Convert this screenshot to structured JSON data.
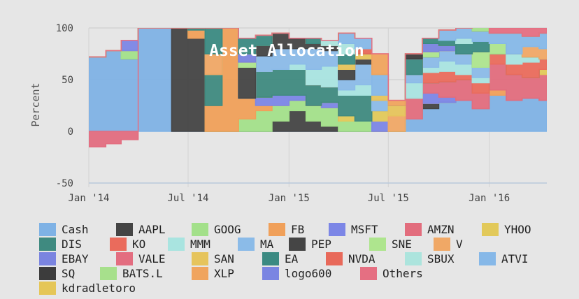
{
  "chart_data": {
    "type": "area",
    "title": "Asset Allocation",
    "ylabel": "Percent",
    "xlabel": "",
    "ylim": [
      -50,
      100
    ],
    "yticks": [
      -50,
      0,
      50,
      100
    ],
    "xlim": [
      "2014-01-01",
      "2016-04-15"
    ],
    "xticks": [
      {
        "label": "Jan '14",
        "date": "2014-01-01"
      },
      {
        "label": "Jul '14",
        "date": "2014-07-01"
      },
      {
        "label": "Jan '15",
        "date": "2015-01-01"
      },
      {
        "label": "Jul '15",
        "date": "2015-07-01"
      },
      {
        "label": "Jan '16",
        "date": "2016-01-01"
      }
    ],
    "grid": true,
    "legend_position": "bottom",
    "x": [
      "2014-01-01",
      "2014-02-01",
      "2014-03-01",
      "2014-04-01",
      "2014-05-01",
      "2014-06-01",
      "2014-07-01",
      "2014-08-01",
      "2014-09-01",
      "2014-10-01",
      "2014-11-01",
      "2014-12-01",
      "2015-01-01",
      "2015-02-01",
      "2015-03-01",
      "2015-04-01",
      "2015-05-01",
      "2015-06-01",
      "2015-07-01",
      "2015-08-01",
      "2015-09-01",
      "2015-10-01",
      "2015-11-01",
      "2015-12-01",
      "2016-01-01",
      "2016-02-01",
      "2016-03-01",
      "2016-04-01"
    ],
    "series": [
      {
        "name": "Cash",
        "color": "#7fb2e5",
        "values": [
          72,
          78,
          70,
          100,
          100,
          0,
          0,
          0,
          0,
          0,
          0,
          0,
          0,
          0,
          0,
          0,
          0,
          0,
          0,
          12,
          22,
          28,
          30,
          22,
          35,
          30,
          32,
          30
        ]
      },
      {
        "name": "AAPL",
        "color": "#444444",
        "values": [
          0,
          0,
          0,
          0,
          0,
          100,
          90,
          0,
          0,
          0,
          0,
          10,
          20,
          10,
          5,
          0,
          0,
          0,
          0,
          0,
          5,
          0,
          0,
          0,
          0,
          0,
          0,
          0
        ]
      },
      {
        "name": "GOOG",
        "color": "#a3e08a",
        "values": [
          0,
          0,
          8,
          0,
          0,
          0,
          0,
          0,
          0,
          12,
          20,
          15,
          10,
          15,
          18,
          10,
          10,
          0,
          0,
          0,
          0,
          0,
          0,
          0,
          0,
          0,
          0,
          0
        ]
      },
      {
        "name": "FB",
        "color": "#f0a05a",
        "values": [
          0,
          0,
          0,
          0,
          0,
          0,
          8,
          25,
          100,
          20,
          5,
          0,
          0,
          0,
          0,
          0,
          0,
          0,
          0,
          0,
          0,
          0,
          0,
          0,
          5,
          0,
          0,
          0
        ]
      },
      {
        "name": "MSFT",
        "color": "#7c86e6",
        "values": [
          0,
          0,
          10,
          0,
          0,
          0,
          0,
          0,
          0,
          0,
          8,
          10,
          5,
          0,
          5,
          0,
          0,
          10,
          0,
          0,
          10,
          5,
          0,
          0,
          0,
          0,
          0,
          0
        ]
      },
      {
        "name": "AMZN",
        "color": "#e26d7d",
        "values": [
          0,
          0,
          0,
          0,
          0,
          0,
          0,
          0,
          0,
          0,
          0,
          0,
          0,
          0,
          0,
          0,
          0,
          0,
          0,
          20,
          10,
          15,
          20,
          15,
          25,
          25,
          20,
          25
        ]
      },
      {
        "name": "YHOO",
        "color": "#e2c95a",
        "values": [
          0,
          0,
          0,
          0,
          0,
          0,
          0,
          0,
          0,
          0,
          0,
          0,
          0,
          0,
          0,
          5,
          0,
          10,
          0,
          0,
          0,
          0,
          0,
          0,
          0,
          0,
          0,
          5
        ]
      },
      {
        "name": "DIS",
        "color": "#3f8a80",
        "values": [
          0,
          0,
          0,
          0,
          0,
          0,
          2,
          30,
          0,
          0,
          25,
          25,
          25,
          20,
          15,
          20,
          25,
          0,
          0,
          0,
          0,
          0,
          0,
          0,
          0,
          0,
          0,
          0
        ]
      },
      {
        "name": "KO",
        "color": "#ea6b5c",
        "values": [
          0,
          0,
          0,
          0,
          0,
          0,
          0,
          0,
          0,
          0,
          0,
          0,
          0,
          0,
          0,
          0,
          0,
          0,
          0,
          0,
          10,
          10,
          5,
          10,
          10,
          10,
          15,
          10
        ]
      },
      {
        "name": "MMM",
        "color": "#a9e4e0",
        "values": [
          0,
          0,
          0,
          0,
          0,
          0,
          0,
          0,
          0,
          0,
          0,
          0,
          5,
          15,
          20,
          5,
          10,
          0,
          0,
          15,
          5,
          10,
          10,
          5,
          0,
          10,
          5,
          0
        ]
      },
      {
        "name": "MA",
        "color": "#8bbbe8",
        "values": [
          0,
          0,
          0,
          0,
          0,
          0,
          0,
          0,
          0,
          0,
          15,
          20,
          15,
          20,
          15,
          10,
          20,
          10,
          0,
          8,
          10,
          10,
          10,
          10,
          0,
          0,
          0,
          0
        ]
      },
      {
        "name": "PEP",
        "color": "#454545",
        "values": [
          0,
          0,
          0,
          0,
          0,
          0,
          0,
          0,
          0,
          30,
          10,
          15,
          10,
          5,
          5,
          10,
          5,
          0,
          0,
          0,
          0,
          0,
          0,
          0,
          0,
          0,
          0,
          0
        ]
      },
      {
        "name": "SNE",
        "color": "#aee58e",
        "values": [
          0,
          0,
          0,
          0,
          0,
          0,
          0,
          0,
          0,
          5,
          0,
          0,
          0,
          0,
          0,
          0,
          0,
          0,
          0,
          0,
          5,
          0,
          0,
          15,
          10,
          0,
          0,
          0
        ]
      },
      {
        "name": "V",
        "color": "#f0a866",
        "values": [
          0,
          0,
          0,
          0,
          0,
          0,
          0,
          20,
          0,
          0,
          0,
          0,
          0,
          0,
          0,
          0,
          0,
          0,
          15,
          0,
          0,
          0,
          0,
          0,
          0,
          0,
          10,
          10
        ]
      },
      {
        "name": "EBAY",
        "color": "#7a84e0",
        "values": [
          0,
          0,
          0,
          0,
          0,
          0,
          0,
          0,
          0,
          8,
          0,
          0,
          0,
          0,
          0,
          0,
          0,
          0,
          0,
          0,
          8,
          5,
          0,
          0,
          0,
          0,
          0,
          0
        ]
      },
      {
        "name": "VALE",
        "color": "#e36d80",
        "values": [
          -15,
          -12,
          -8,
          0,
          0,
          0,
          0,
          0,
          0,
          0,
          0,
          0,
          0,
          0,
          0,
          0,
          0,
          0,
          0,
          0,
          0,
          0,
          0,
          0,
          0,
          0,
          0,
          0
        ]
      },
      {
        "name": "SAN",
        "color": "#e6c45c",
        "values": [
          0,
          0,
          0,
          0,
          0,
          0,
          0,
          0,
          0,
          0,
          0,
          0,
          0,
          0,
          0,
          5,
          5,
          5,
          10,
          0,
          0,
          0,
          0,
          0,
          0,
          0,
          0,
          0
        ]
      },
      {
        "name": "EA",
        "color": "#3b8a82",
        "values": [
          0,
          0,
          0,
          0,
          0,
          0,
          0,
          25,
          0,
          15,
          10,
          0,
          0,
          5,
          0,
          10,
          0,
          0,
          0,
          15,
          5,
          5,
          10,
          10,
          0,
          0,
          0,
          0
        ]
      },
      {
        "name": "NVDA",
        "color": "#e8695a",
        "values": [
          0,
          0,
          0,
          0,
          0,
          0,
          0,
          0,
          0,
          0,
          0,
          0,
          0,
          0,
          0,
          0,
          5,
          0,
          0,
          0,
          0,
          0,
          0,
          0,
          0,
          0,
          0,
          0
        ]
      },
      {
        "name": "SBUX",
        "color": "#ace4dd",
        "values": [
          0,
          0,
          0,
          0,
          0,
          0,
          0,
          0,
          0,
          0,
          0,
          0,
          0,
          0,
          5,
          10,
          0,
          0,
          0,
          0,
          0,
          0,
          5,
          0,
          0,
          0,
          0,
          0
        ]
      },
      {
        "name": "ATVI",
        "color": "#86b8e8",
        "values": [
          0,
          0,
          0,
          0,
          0,
          0,
          0,
          0,
          0,
          0,
          0,
          0,
          0,
          0,
          0,
          10,
          10,
          20,
          0,
          0,
          0,
          10,
          10,
          10,
          10,
          20,
          10,
          15
        ]
      },
      {
        "name": "SQ",
        "color": "#3c3c3c",
        "values": [
          0,
          0,
          0,
          0,
          0,
          0,
          0,
          0,
          0,
          0,
          0,
          0,
          0,
          0,
          0,
          0,
          0,
          0,
          0,
          5,
          0,
          0,
          0,
          0,
          0,
          0,
          0,
          0
        ]
      },
      {
        "name": "BATS.L",
        "color": "#a7e08c",
        "values": [
          0,
          0,
          0,
          0,
          0,
          0,
          0,
          0,
          0,
          0,
          0,
          0,
          0,
          0,
          0,
          0,
          0,
          0,
          0,
          0,
          0,
          0,
          0,
          10,
          0,
          0,
          0,
          0
        ]
      },
      {
        "name": "XLP",
        "color": "#f0a45e",
        "values": [
          0,
          0,
          0,
          0,
          0,
          0,
          0,
          0,
          0,
          0,
          0,
          0,
          0,
          0,
          0,
          0,
          0,
          20,
          5,
          0,
          0,
          0,
          0,
          0,
          0,
          0,
          0,
          0
        ]
      },
      {
        "name": "logo600",
        "color": "#7a85e2",
        "values": [
          0,
          0,
          0,
          0,
          0,
          0,
          0,
          0,
          0,
          0,
          0,
          0,
          0,
          0,
          0,
          0,
          0,
          0,
          0,
          0,
          0,
          0,
          0,
          0,
          0,
          0,
          0,
          0
        ]
      },
      {
        "name": "Others",
        "color": "#e56f82",
        "values": [
          0,
          0,
          0,
          0,
          0,
          0,
          0,
          0,
          0,
          0,
          0,
          0,
          0,
          0,
          0,
          0,
          0,
          0,
          0,
          0,
          0,
          0,
          0,
          0,
          5,
          5,
          8,
          5
        ]
      },
      {
        "name": "kdradletoro",
        "color": "#e5c657",
        "values": [
          0,
          0,
          0,
          0,
          0,
          0,
          0,
          0,
          0,
          0,
          0,
          0,
          0,
          0,
          0,
          0,
          0,
          0,
          0,
          0,
          0,
          0,
          0,
          0,
          0,
          0,
          0,
          0
        ]
      }
    ]
  }
}
